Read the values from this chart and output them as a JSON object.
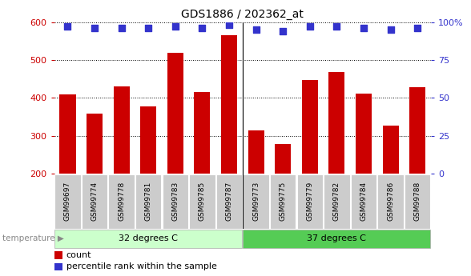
{
  "title": "GDS1886 / 202362_at",
  "categories": [
    "GSM99697",
    "GSM99774",
    "GSM99778",
    "GSM99781",
    "GSM99783",
    "GSM99785",
    "GSM99787",
    "GSM99773",
    "GSM99775",
    "GSM99779",
    "GSM99782",
    "GSM99784",
    "GSM99786",
    "GSM99788"
  ],
  "bar_values": [
    410,
    358,
    430,
    378,
    520,
    415,
    565,
    315,
    278,
    447,
    468,
    412,
    328,
    428
  ],
  "percentile_values": [
    97,
    96,
    96,
    96,
    97,
    96,
    98,
    95,
    94,
    97,
    97,
    96,
    95,
    96
  ],
  "group1_label": "32 degrees C",
  "group2_label": "37 degrees C",
  "group1_count": 7,
  "group2_count": 7,
  "ylim": [
    200,
    600
  ],
  "yticks": [
    200,
    300,
    400,
    500,
    600
  ],
  "y2lim": [
    0,
    100
  ],
  "y2ticks": [
    0,
    25,
    50,
    75,
    100
  ],
  "bar_color": "#cc0000",
  "dot_color": "#3333cc",
  "group1_color": "#ccffcc",
  "group2_color": "#55cc55",
  "tick_bg_color": "#cccccc",
  "legend_count_color": "#cc0000",
  "legend_pct_color": "#3333cc",
  "figsize": [
    5.88,
    3.45
  ],
  "dpi": 100
}
